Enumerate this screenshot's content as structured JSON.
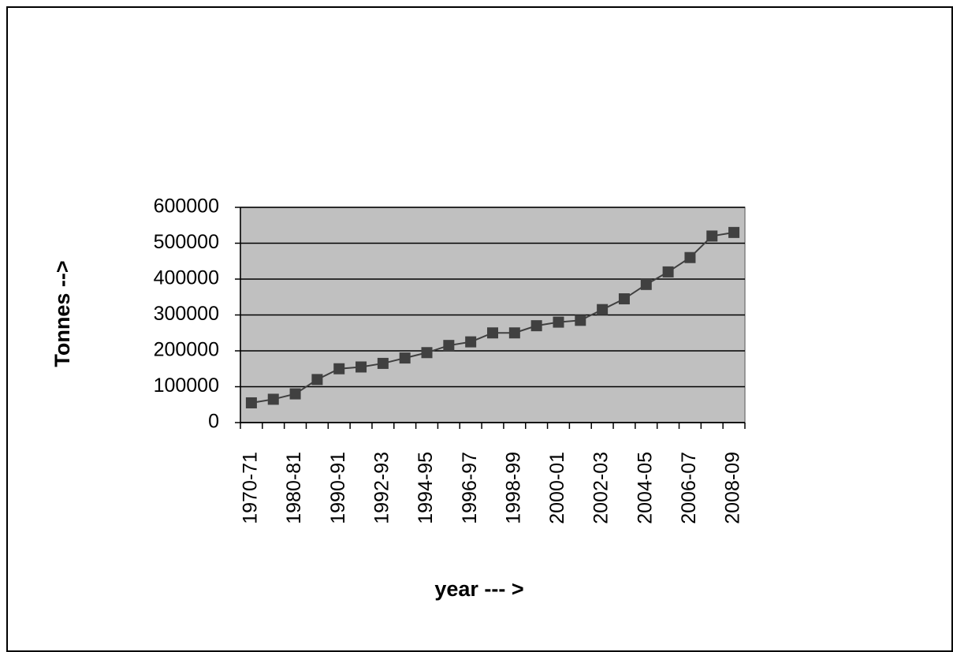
{
  "chart_data": {
    "type": "line",
    "x_label": "year --- >",
    "y_label": "Tonnes -->",
    "categories": [
      "1970-71",
      null,
      "1980-81",
      null,
      "1990-91",
      null,
      "1992-93",
      null,
      "1994-95",
      null,
      "1996-97",
      null,
      "1998-99",
      null,
      "2000-01",
      null,
      "2002-03",
      null,
      "2004-05",
      null,
      "2006-07",
      null,
      "2008-09"
    ],
    "values": [
      55000,
      65000,
      80000,
      120000,
      150000,
      155000,
      165000,
      180000,
      195000,
      215000,
      225000,
      250000,
      250000,
      270000,
      280000,
      285000,
      315000,
      345000,
      385000,
      420000,
      460000,
      520000,
      530000
    ],
    "color": "#404040",
    "plot_background": "#c0c0c0",
    "ylim": [
      0,
      600000
    ],
    "yticks": [
      0,
      100000,
      200000,
      300000,
      400000,
      500000,
      600000
    ],
    "grid": true
  }
}
